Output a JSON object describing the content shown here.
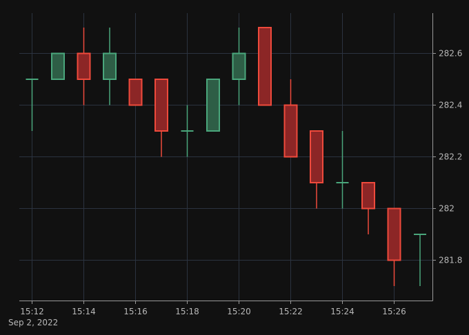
{
  "colors": {
    "background": "#111111",
    "grid": "#2b3340",
    "axis": "#9a9a9a",
    "tick_text": "#b8b8b8",
    "up_stroke": "#4aa77c",
    "up_fill": "#2e5e46",
    "down_stroke": "#ef4a3c",
    "down_fill": "#8c2626"
  },
  "chart_data": {
    "type": "candlestick",
    "date_label": "Sep 2, 2022",
    "x_tick_labels": [
      "15:12",
      "15:14",
      "15:16",
      "15:18",
      "15:20",
      "15:22",
      "15:24",
      "15:26"
    ],
    "y_tick_labels": [
      "281.8",
      "282",
      "282.2",
      "282.4",
      "282.6"
    ],
    "ylim": [
      281.65,
      282.76
    ],
    "grid": true,
    "y_axis_side": "right",
    "candles": [
      {
        "time": "15:12",
        "open": 282.5,
        "high": 282.5,
        "low": 282.3,
        "close": 282.5
      },
      {
        "time": "15:13",
        "open": 282.5,
        "high": 282.6,
        "low": 282.5,
        "close": 282.6
      },
      {
        "time": "15:14",
        "open": 282.6,
        "high": 282.7,
        "low": 282.4,
        "close": 282.5
      },
      {
        "time": "15:15",
        "open": 282.5,
        "high": 282.7,
        "low": 282.4,
        "close": 282.6
      },
      {
        "time": "15:16",
        "open": 282.5,
        "high": 282.5,
        "low": 282.4,
        "close": 282.4
      },
      {
        "time": "15:17",
        "open": 282.5,
        "high": 282.5,
        "low": 282.2,
        "close": 282.3
      },
      {
        "time": "15:18",
        "open": 282.3,
        "high": 282.4,
        "low": 282.2,
        "close": 282.3
      },
      {
        "time": "15:19",
        "open": 282.3,
        "high": 282.5,
        "low": 282.3,
        "close": 282.5
      },
      {
        "time": "15:20",
        "open": 282.5,
        "high": 282.7,
        "low": 282.4,
        "close": 282.6
      },
      {
        "time": "15:21",
        "open": 282.7,
        "high": 282.7,
        "low": 282.4,
        "close": 282.4
      },
      {
        "time": "15:22",
        "open": 282.4,
        "high": 282.5,
        "low": 282.2,
        "close": 282.2
      },
      {
        "time": "15:23",
        "open": 282.3,
        "high": 282.3,
        "low": 282.0,
        "close": 282.1
      },
      {
        "time": "15:24",
        "open": 282.1,
        "high": 282.3,
        "low": 282.0,
        "close": 282.1
      },
      {
        "time": "15:25",
        "open": 282.1,
        "high": 282.1,
        "low": 281.9,
        "close": 282.0
      },
      {
        "time": "15:26",
        "open": 282.0,
        "high": 282.0,
        "low": 281.7,
        "close": 281.8
      },
      {
        "time": "15:27",
        "open": 281.9,
        "high": 281.9,
        "low": 281.7,
        "close": 281.9
      }
    ]
  }
}
